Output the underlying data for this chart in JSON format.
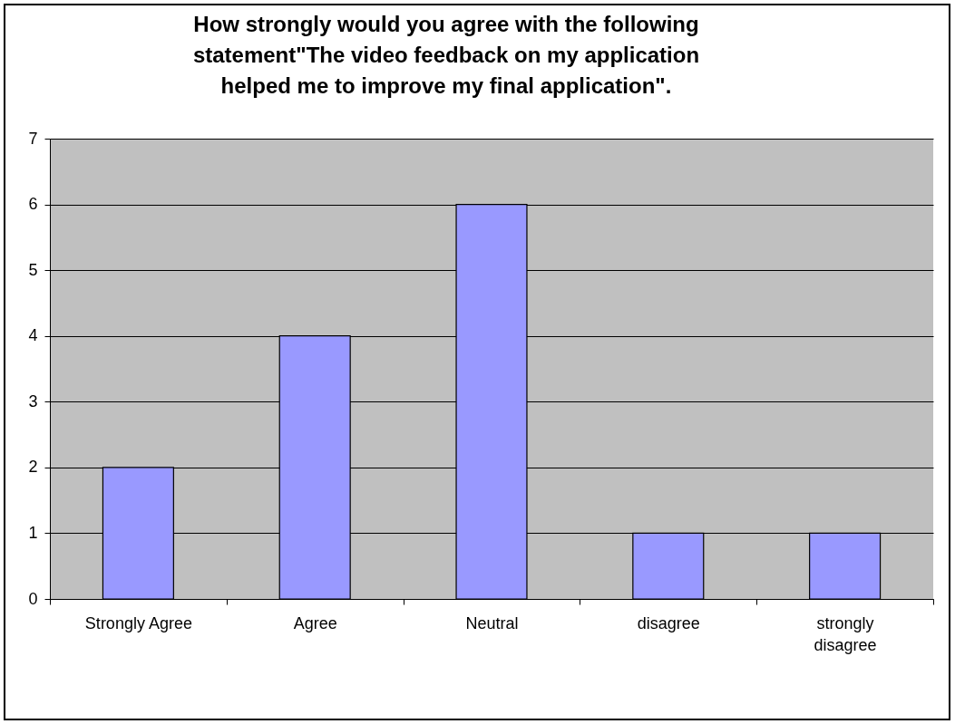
{
  "chart_data": {
    "type": "bar",
    "title": "How strongly would you agree with the following statement\"The video feedback on my application helped me to improve my final application\".",
    "categories": [
      "Strongly Agree",
      "Agree",
      "Neutral",
      "disagree",
      "strongly disagree"
    ],
    "values": [
      2,
      4,
      6,
      1,
      1
    ],
    "color": "#9999ff",
    "ylim": [
      0,
      7
    ],
    "yticks": [
      0,
      1,
      2,
      3,
      4,
      5,
      6,
      7
    ],
    "grid": "y"
  }
}
